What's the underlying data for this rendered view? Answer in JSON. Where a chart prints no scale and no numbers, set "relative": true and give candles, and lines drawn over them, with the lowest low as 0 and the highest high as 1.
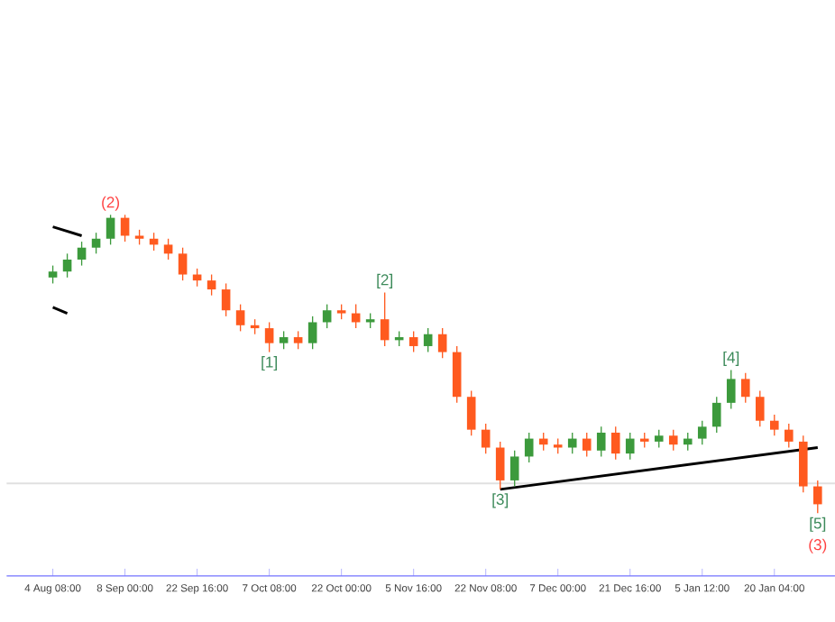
{
  "chart_data": {
    "type": "candlestick",
    "relative": true,
    "tick_labels": "x",
    "grid": false,
    "categories": [
      "4 Aug 08:00",
      null,
      null,
      null,
      null,
      "8 Sep 00:00",
      null,
      null,
      null,
      null,
      "22 Sep 16:00",
      null,
      null,
      null,
      null,
      "7 Oct 08:00",
      null,
      null,
      null,
      null,
      "22 Oct 00:00",
      null,
      null,
      null,
      null,
      "5 Nov 16:00",
      null,
      null,
      null,
      null,
      "22 Nov 08:00",
      null,
      null,
      null,
      null,
      "7 Dec 00:00",
      null,
      null,
      null,
      null,
      "21 Dec 16:00",
      null,
      null,
      null,
      null,
      "5 Jan 12:00",
      null,
      null,
      null,
      null,
      "20 Jan 04:00",
      null,
      null,
      null
    ],
    "ohlc": [
      [
        0.79,
        0.83,
        0.77,
        0.81
      ],
      [
        0.81,
        0.87,
        0.79,
        0.85
      ],
      [
        0.85,
        0.91,
        0.83,
        0.89
      ],
      [
        0.89,
        0.94,
        0.87,
        0.92
      ],
      [
        0.92,
        1.0,
        0.9,
        0.99
      ],
      [
        0.99,
        1.0,
        0.91,
        0.93
      ],
      [
        0.93,
        0.95,
        0.9,
        0.92
      ],
      [
        0.92,
        0.94,
        0.88,
        0.9
      ],
      [
        0.9,
        0.92,
        0.85,
        0.87
      ],
      [
        0.87,
        0.89,
        0.78,
        0.8
      ],
      [
        0.8,
        0.82,
        0.76,
        0.78
      ],
      [
        0.78,
        0.8,
        0.73,
        0.75
      ],
      [
        0.75,
        0.77,
        0.66,
        0.68
      ],
      [
        0.68,
        0.7,
        0.61,
        0.63
      ],
      [
        0.63,
        0.65,
        0.6,
        0.62
      ],
      [
        0.62,
        0.64,
        0.54,
        0.57
      ],
      [
        0.57,
        0.61,
        0.55,
        0.59
      ],
      [
        0.59,
        0.61,
        0.55,
        0.57
      ],
      [
        0.57,
        0.66,
        0.55,
        0.64
      ],
      [
        0.64,
        0.7,
        0.62,
        0.68
      ],
      [
        0.68,
        0.7,
        0.65,
        0.67
      ],
      [
        0.67,
        0.7,
        0.62,
        0.64
      ],
      [
        0.64,
        0.67,
        0.62,
        0.65
      ],
      [
        0.65,
        0.74,
        0.56,
        0.58
      ],
      [
        0.58,
        0.61,
        0.56,
        0.59
      ],
      [
        0.59,
        0.61,
        0.54,
        0.56
      ],
      [
        0.56,
        0.62,
        0.54,
        0.6
      ],
      [
        0.6,
        0.62,
        0.52,
        0.54
      ],
      [
        0.54,
        0.56,
        0.37,
        0.39
      ],
      [
        0.39,
        0.41,
        0.26,
        0.28
      ],
      [
        0.28,
        0.3,
        0.2,
        0.22
      ],
      [
        0.22,
        0.24,
        0.08,
        0.11
      ],
      [
        0.11,
        0.21,
        0.09,
        0.19
      ],
      [
        0.19,
        0.27,
        0.17,
        0.25
      ],
      [
        0.25,
        0.27,
        0.21,
        0.23
      ],
      [
        0.23,
        0.25,
        0.2,
        0.22
      ],
      [
        0.22,
        0.27,
        0.2,
        0.25
      ],
      [
        0.25,
        0.27,
        0.19,
        0.21
      ],
      [
        0.21,
        0.29,
        0.19,
        0.27
      ],
      [
        0.27,
        0.29,
        0.18,
        0.2
      ],
      [
        0.2,
        0.27,
        0.18,
        0.25
      ],
      [
        0.25,
        0.27,
        0.22,
        0.24
      ],
      [
        0.24,
        0.28,
        0.22,
        0.26
      ],
      [
        0.26,
        0.28,
        0.21,
        0.23
      ],
      [
        0.23,
        0.27,
        0.21,
        0.25
      ],
      [
        0.25,
        0.31,
        0.23,
        0.29
      ],
      [
        0.29,
        0.39,
        0.27,
        0.37
      ],
      [
        0.37,
        0.48,
        0.35,
        0.45
      ],
      [
        0.45,
        0.47,
        0.37,
        0.39
      ],
      [
        0.39,
        0.41,
        0.29,
        0.31
      ],
      [
        0.31,
        0.33,
        0.26,
        0.28
      ],
      [
        0.28,
        0.3,
        0.22,
        0.24
      ],
      [
        0.24,
        0.26,
        0.07,
        0.09
      ],
      [
        0.09,
        0.11,
        0.0,
        0.03
      ]
    ],
    "series": [
      {
        "type": "line",
        "color": "#000000",
        "values": [
          null,
          null,
          null,
          null,
          null,
          null,
          null,
          null,
          null,
          null,
          null,
          null,
          null,
          null,
          null,
          null,
          null,
          null,
          null,
          null,
          null,
          null,
          null,
          null,
          null,
          null,
          null,
          null,
          null,
          null,
          null,
          0.08,
          null,
          null,
          null,
          null,
          null,
          null,
          null,
          null,
          null,
          null,
          null,
          null,
          null,
          null,
          null,
          null,
          null,
          null,
          null,
          null,
          null,
          0.22
        ]
      },
      {
        "type": "line",
        "color": "#000000",
        "values": [
          0.96,
          null,
          0.93,
          null,
          null,
          null,
          null,
          null,
          null,
          null,
          null,
          null,
          null,
          null,
          null,
          null,
          null,
          null,
          null,
          null,
          null,
          null,
          null,
          null,
          null,
          null,
          null,
          null,
          null,
          null,
          null,
          null,
          null,
          null,
          null,
          null,
          null,
          null,
          null,
          null,
          null,
          null,
          null,
          null,
          null,
          null,
          null,
          null,
          null,
          null,
          null,
          null,
          null,
          null
        ]
      },
      {
        "type": "line",
        "color": "#000000",
        "values": [
          0.69,
          0.67,
          null,
          null,
          null,
          null,
          null,
          null,
          null,
          null,
          null,
          null,
          null,
          null,
          null,
          null,
          null,
          null,
          null,
          null,
          null,
          null,
          null,
          null,
          null,
          null,
          null,
          null,
          null,
          null,
          null,
          null,
          null,
          null,
          null,
          null,
          null,
          null,
          null,
          null,
          null,
          null,
          null,
          null,
          null,
          null,
          null,
          null,
          null,
          null,
          null,
          null,
          null,
          null
        ]
      }
    ],
    "ref_lines": [
      {
        "axis": "y",
        "value": 0.1,
        "color": "#e0e0e0"
      }
    ],
    "annotations": [
      "(2)",
      "[1]",
      "[2]",
      "[3]",
      "[4]",
      "[5]",
      "(3)"
    ]
  }
}
